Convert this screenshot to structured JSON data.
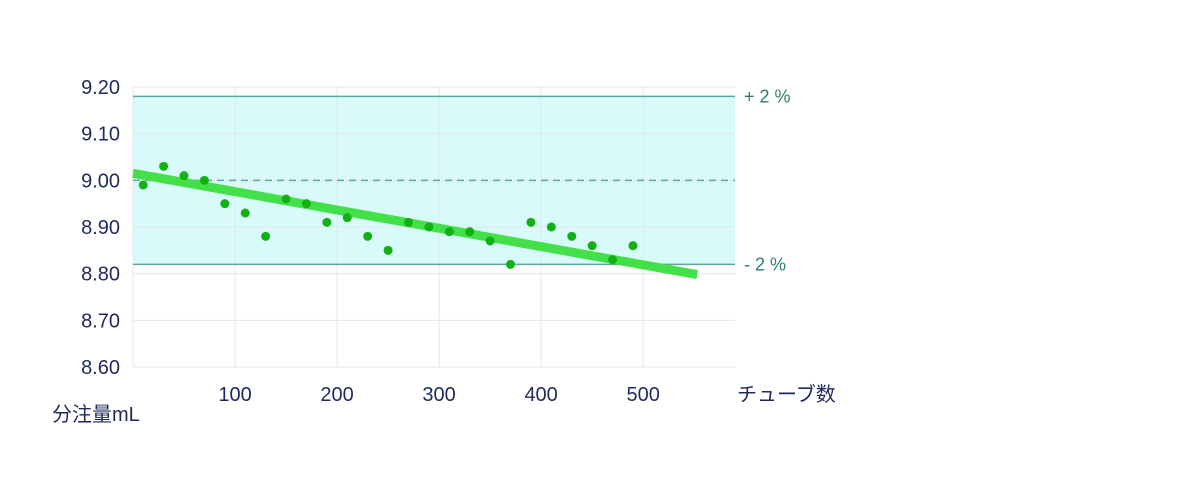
{
  "chart_data": {
    "type": "scatter",
    "xlabel": "チューブ数",
    "ylabel": "分注量mL",
    "xlim": [
      0,
      590
    ],
    "ylim": [
      8.6,
      9.2
    ],
    "grid": true,
    "y_ticks": [
      "9.20",
      "9.10",
      "9.00",
      "8.90",
      "8.80",
      "8.70",
      "8.60"
    ],
    "y_tick_values": [
      9.2,
      9.1,
      9.0,
      8.9,
      8.8,
      8.7,
      8.6
    ],
    "x_ticks": [
      "100",
      "200",
      "300",
      "400",
      "500"
    ],
    "x_tick_values": [
      100,
      200,
      300,
      400,
      500
    ],
    "tolerance_band": {
      "upper": 9.18,
      "lower": 8.82,
      "nominal": 9.0,
      "upper_label": "+ 2 %",
      "lower_label": "- 2 %",
      "fill_color": "#d9fafb",
      "line_color": "#5aa7a0"
    },
    "trend_line": {
      "x": [
        0,
        553
      ],
      "y": [
        9.015,
        8.798
      ],
      "color": "#44e049"
    },
    "points": {
      "color": "#12b112",
      "x": [
        10,
        30,
        50,
        70,
        90,
        110,
        130,
        150,
        170,
        190,
        210,
        230,
        250,
        270,
        290,
        310,
        330,
        350,
        370,
        390,
        410,
        430,
        450,
        470,
        490
      ],
      "y": [
        8.99,
        9.03,
        9.01,
        9.0,
        8.95,
        8.93,
        8.88,
        8.96,
        8.95,
        8.91,
        8.92,
        8.88,
        8.85,
        8.91,
        8.9,
        8.89,
        8.89,
        8.87,
        8.82,
        8.91,
        8.9,
        8.88,
        8.86,
        8.83,
        8.86
      ]
    }
  }
}
